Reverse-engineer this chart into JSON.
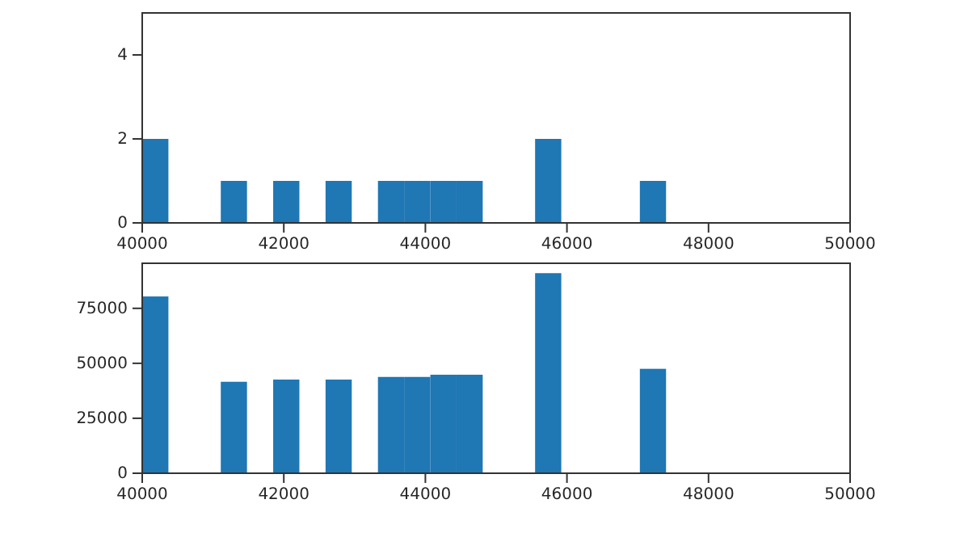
{
  "chart_data": [
    {
      "type": "histogram",
      "bins": [
        40000,
        40370,
        40740,
        41110,
        41480,
        41850,
        42220,
        42590,
        42960,
        43330,
        43700,
        44070,
        44440,
        44810,
        45180,
        45550,
        45920,
        46290,
        46660,
        47030,
        47400
      ],
      "values": [
        2,
        0,
        0,
        1,
        0,
        1,
        0,
        1,
        0,
        1,
        1,
        1,
        1,
        0,
        0,
        2,
        0,
        0,
        0,
        1
      ],
      "color": "#1f77b4",
      "xlim": [
        40000,
        50000
      ],
      "xticks": [
        40000,
        42000,
        44000,
        46000,
        48000,
        50000
      ],
      "ylim": [
        0,
        5
      ],
      "yticks": [
        0,
        2,
        4
      ],
      "grid": false
    },
    {
      "type": "histogram",
      "bins": [
        40000,
        40370,
        40740,
        41110,
        41480,
        41850,
        42220,
        42590,
        42960,
        43330,
        43700,
        44070,
        44440,
        44810,
        45180,
        45550,
        45920,
        46290,
        46660,
        47030,
        47400
      ],
      "values": [
        80400,
        0,
        0,
        41600,
        0,
        42600,
        0,
        42600,
        0,
        43800,
        43800,
        44800,
        44800,
        0,
        0,
        91000,
        0,
        0,
        0,
        47500
      ],
      "color": "#1f77b4",
      "xlim": [
        40000,
        50000
      ],
      "xticks": [
        40000,
        42000,
        44000,
        46000,
        48000,
        50000
      ],
      "ylim": [
        0,
        95500
      ],
      "yticks": [
        0,
        25000,
        50000,
        75000
      ],
      "grid": false
    }
  ]
}
